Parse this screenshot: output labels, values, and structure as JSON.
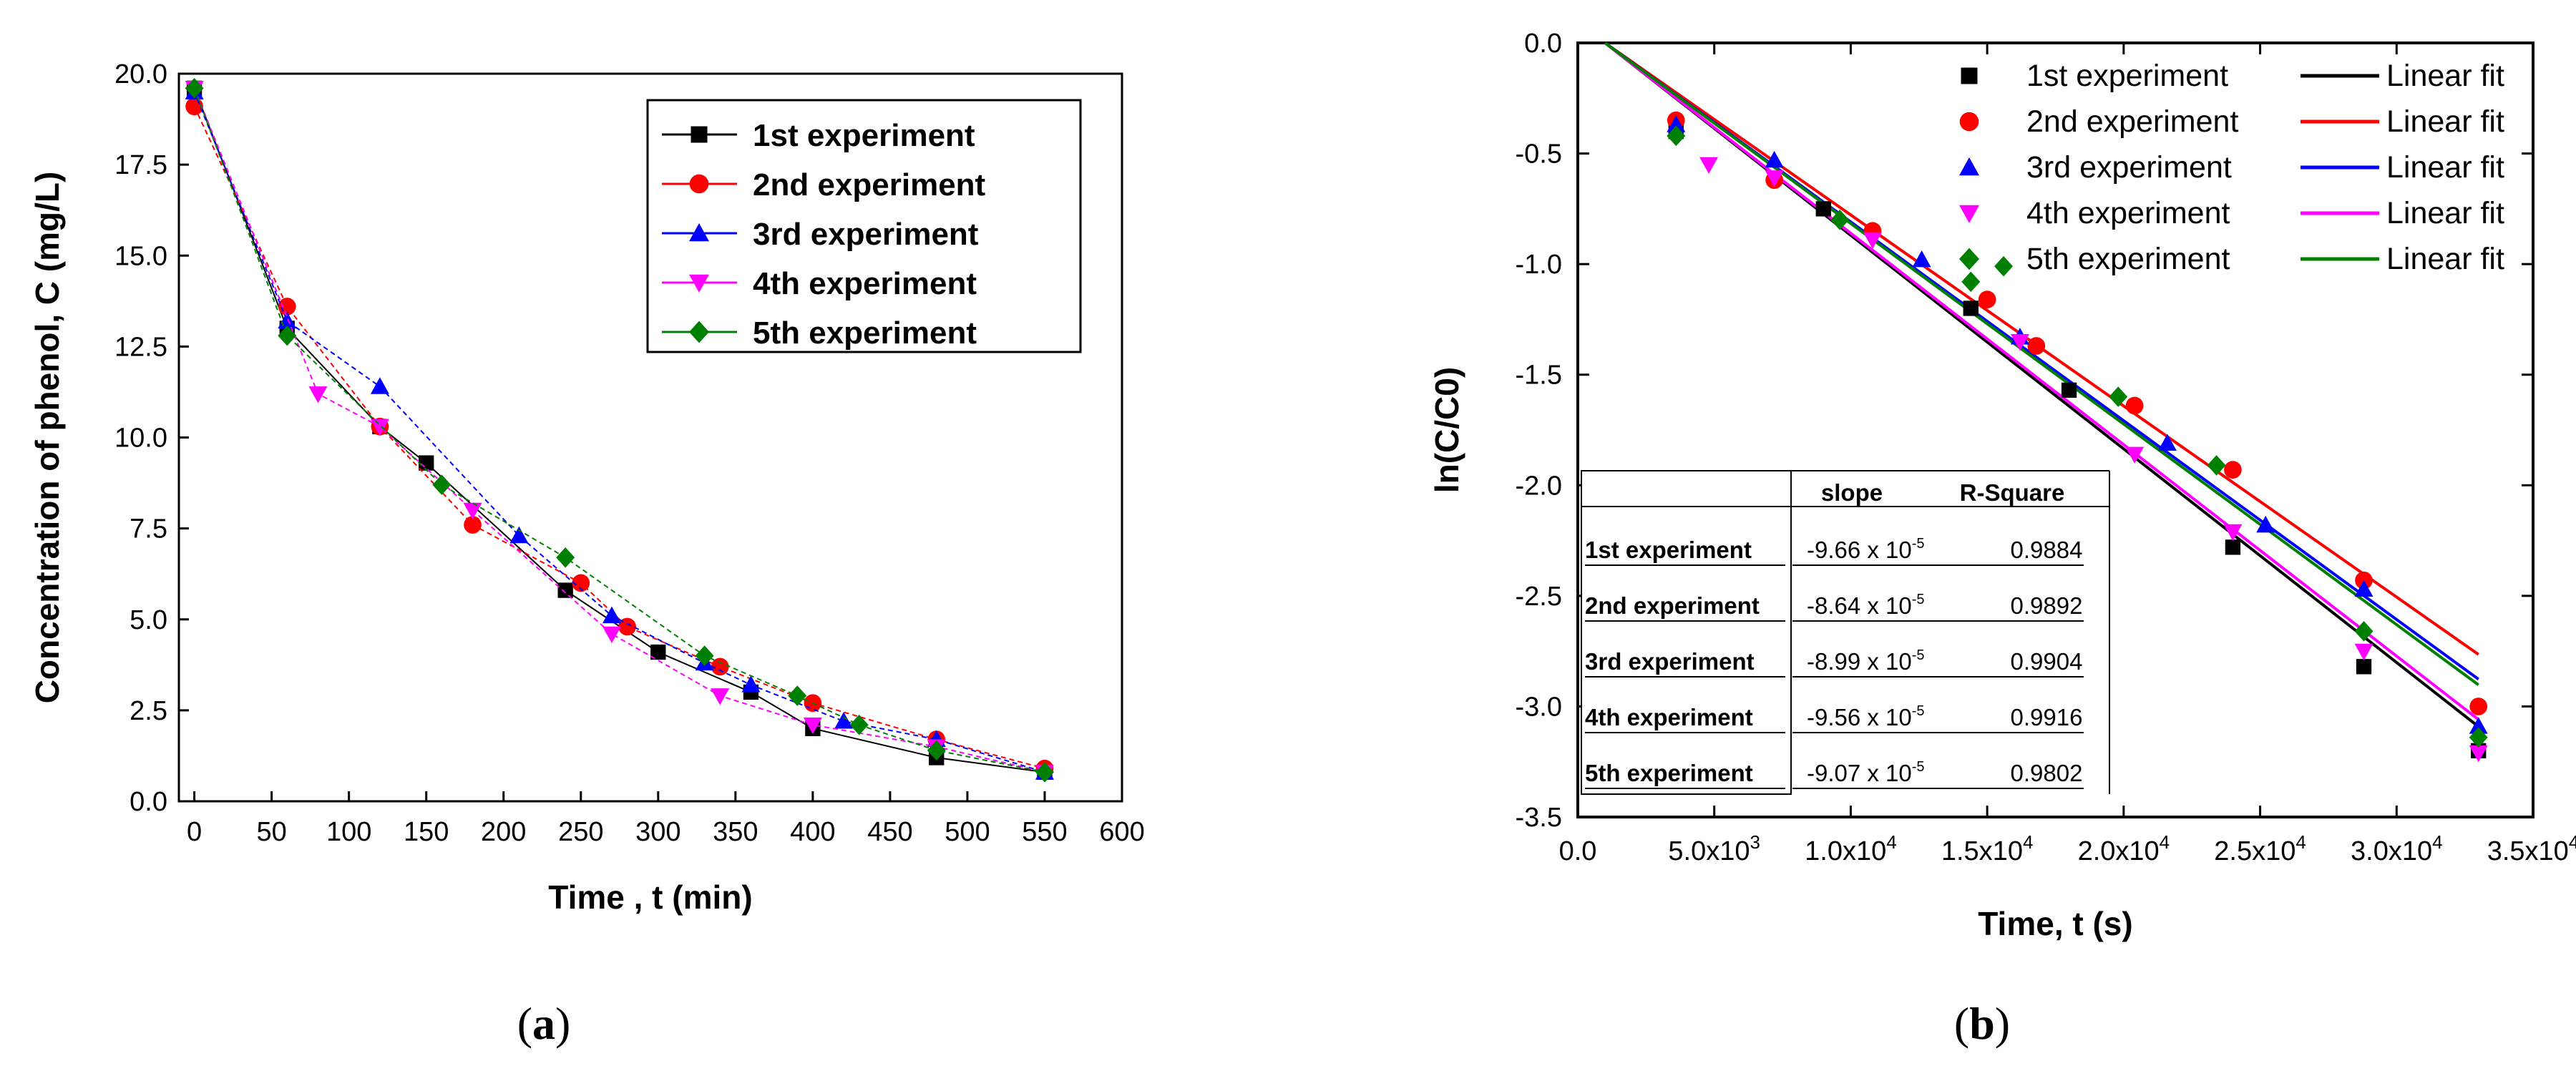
{
  "colors": {
    "s1": "#000000",
    "s2": "#ff0000",
    "s3": "#0000ff",
    "s4": "#ff00ff",
    "s5": "#008000"
  },
  "panel_labels": {
    "a": "a",
    "b": "b"
  },
  "chart_data": [
    {
      "type": "line",
      "panel": "a",
      "xlabel": "Time , t (min)",
      "ylabel": "Concentration of phenol, C (mg/L)",
      "xlim": [
        -10,
        600
      ],
      "ylim": [
        0,
        20
      ],
      "xticks": [
        "0",
        "50",
        "100",
        "150",
        "200",
        "250",
        "300",
        "350",
        "400",
        "450",
        "500",
        "550",
        "600"
      ],
      "yticks": [
        "0.0",
        "2.5",
        "5.0",
        "7.5",
        "10.0",
        "12.5",
        "15.0",
        "17.5",
        "20.0"
      ],
      "legend_position": "top-right",
      "series": [
        {
          "name": "1st experiment",
          "marker": "square",
          "x": [
            0,
            60,
            120,
            150,
            240,
            300,
            360,
            400,
            480,
            550
          ],
          "y": [
            19.6,
            13.0,
            10.3,
            9.3,
            5.8,
            4.1,
            3.0,
            2.0,
            1.2,
            0.8
          ]
        },
        {
          "name": "2nd experiment",
          "marker": "circle",
          "x": [
            0,
            60,
            120,
            180,
            250,
            280,
            340,
            400,
            480,
            550
          ],
          "y": [
            19.1,
            13.6,
            10.3,
            7.6,
            6.0,
            4.8,
            3.7,
            2.7,
            1.7,
            0.9
          ]
        },
        {
          "name": "3rd experiment",
          "marker": "triangle-up",
          "x": [
            0,
            60,
            120,
            210,
            270,
            330,
            360,
            420,
            480,
            550
          ],
          "y": [
            19.5,
            13.2,
            11.4,
            7.3,
            5.1,
            3.8,
            3.2,
            2.2,
            1.7,
            0.8
          ]
        },
        {
          "name": "4th experiment",
          "marker": "triangle-down",
          "x": [
            0,
            80,
            120,
            180,
            270,
            340,
            400,
            480,
            550
          ],
          "y": [
            19.6,
            11.2,
            10.3,
            8.0,
            4.6,
            2.9,
            2.1,
            1.5,
            0.8
          ]
        },
        {
          "name": "5th experiment",
          "marker": "diamond",
          "x": [
            0,
            60,
            160,
            240,
            330,
            390,
            430,
            480,
            550
          ],
          "y": [
            19.6,
            12.8,
            8.7,
            6.7,
            4.0,
            2.9,
            2.1,
            1.4,
            0.8
          ]
        }
      ]
    },
    {
      "type": "scatter",
      "panel": "b",
      "xlabel": "Time, t (s)",
      "ylabel": "ln(C/C0)",
      "xlim": [
        0,
        35000
      ],
      "ylim": [
        -3.5,
        0.0
      ],
      "xticks": [
        "0.0",
        "5.0x10",
        "1.0x10",
        "1.5x10",
        "2.0x10",
        "2.5x10",
        "3.0x10",
        "3.5x10"
      ],
      "xtick_exponents": [
        "",
        "3",
        "4",
        "4",
        "4",
        "4",
        "4",
        "4"
      ],
      "yticks": [
        "0.0",
        "-0.5",
        "-1.0",
        "-1.5",
        "-2.0",
        "-2.5",
        "-3.0",
        "-3.5"
      ],
      "legend_position": "top-right",
      "fit_label": "Linear fit",
      "series": [
        {
          "name": "1st experiment",
          "marker": "square",
          "slope": -9.66e-05,
          "x": [
            3600,
            9000,
            14400,
            18000,
            24000,
            28800,
            33000
          ],
          "y": [
            -0.4,
            -0.75,
            -1.2,
            -1.57,
            -2.28,
            -2.82,
            -3.2
          ]
        },
        {
          "name": "2nd experiment",
          "marker": "circle",
          "slope": -8.64e-05,
          "x": [
            3600,
            7200,
            10800,
            15000,
            16800,
            20400,
            24000,
            28800,
            33000
          ],
          "y": [
            -0.35,
            -0.62,
            -0.85,
            -1.16,
            -1.37,
            -1.64,
            -1.93,
            -2.43,
            -3.0
          ]
        },
        {
          "name": "3rd experiment",
          "marker": "triangle-up",
          "x": [
            3600,
            7200,
            12600,
            16200,
            21600,
            25200,
            28800,
            33000
          ],
          "slope": -8.99e-05,
          "y": [
            -0.37,
            -0.53,
            -0.98,
            -1.33,
            -1.81,
            -2.18,
            -2.47,
            -3.09
          ]
        },
        {
          "name": "4th experiment",
          "marker": "triangle-down",
          "slope": -9.56e-05,
          "x": [
            4800,
            7200,
            10800,
            16200,
            20400,
            24000,
            28800,
            33000
          ],
          "y": [
            -0.55,
            -0.61,
            -0.89,
            -1.35,
            -1.86,
            -2.21,
            -2.75,
            -3.21
          ]
        },
        {
          "name": "5th experiment",
          "marker": "diamond",
          "slope": -9.07e-05,
          "x": [
            3600,
            9600,
            14400,
            15600,
            19800,
            23400,
            28800,
            33000
          ],
          "y": [
            -0.42,
            -0.8,
            -1.08,
            -1.01,
            -1.6,
            -1.91,
            -2.66,
            -3.14
          ]
        }
      ],
      "table": {
        "headers": [
          "",
          "slope",
          "R-Square"
        ],
        "rows": [
          {
            "label": "1st experiment",
            "slope": "-9.66 x 10",
            "exp": "-5",
            "r2": "0.9884"
          },
          {
            "label": "2nd experiment",
            "slope": "-8.64 x 10",
            "exp": "-5",
            "r2": "0.9892"
          },
          {
            "label": "3rd experiment",
            "slope": "-8.99 x 10",
            "exp": "-5",
            "r2": "0.9904"
          },
          {
            "label": "4th experiment",
            "slope": "-9.56 x 10",
            "exp": "-5",
            "r2": "0.9916"
          },
          {
            "label": "5th experiment",
            "slope": "-9.07 x 10",
            "exp": "-5",
            "r2": "0.9802"
          }
        ]
      }
    }
  ]
}
